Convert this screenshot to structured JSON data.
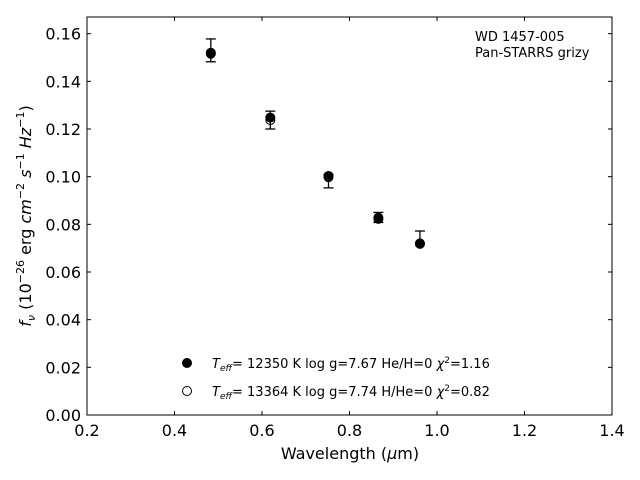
{
  "chart_data": {
    "type": "scatter",
    "annotation": [
      "WD 1457-005",
      "Pan-STARRS grizy"
    ],
    "xlabel": "Wavelength (μm)",
    "ylabel": "f_ν (10^-26 erg cm^-2 s^-1 Hz^-1)",
    "xlim": [
      0.2,
      1.4
    ],
    "ylim": [
      0.0,
      0.167
    ],
    "xticks": [
      0.2,
      0.4,
      0.6,
      0.8,
      1.0,
      1.2,
      1.4
    ],
    "xtick_labels": [
      "0.2",
      "0.4",
      "0.6",
      "0.8",
      "1.0",
      "1.2",
      "1.4"
    ],
    "yticks": [
      0.0,
      0.02,
      0.04,
      0.06,
      0.08,
      0.1,
      0.12,
      0.14,
      0.16
    ],
    "ytick_labels": [
      "0.00",
      "0.02",
      "0.04",
      "0.06",
      "0.08",
      "0.10",
      "0.12",
      "0.14",
      "0.16"
    ],
    "grid": false,
    "legend_position": "lower-center",
    "observed": {
      "x": [
        0.483,
        0.619,
        0.752,
        0.866,
        0.961
      ],
      "y": [
        0.153,
        0.124,
        0.0975,
        0.0825,
        0.074
      ],
      "yerr_low": [
        0.0048,
        0.004,
        0.0022,
        0.0017,
        0.002
      ],
      "yerr_high": [
        0.0048,
        0.0035,
        0.0035,
        0.0025,
        0.0032
      ]
    },
    "series": [
      {
        "name": "T_eff= 12350 K  log g=7.67  He/H=0  χ²=1.16",
        "marker": "filled-circle",
        "x": [
          0.483,
          0.619,
          0.752,
          0.866,
          0.961
        ],
        "y": [
          0.152,
          0.1248,
          0.1003,
          0.0828,
          0.072
        ]
      },
      {
        "name": "T_eff= 13364 K  log g=7.74  H/He=0  χ²=0.82",
        "marker": "open-circle",
        "x": [
          0.483,
          0.619,
          0.752,
          0.866,
          0.961
        ],
        "y": [
          0.1516,
          0.1238,
          0.0998,
          0.0823,
          0.0718
        ]
      }
    ],
    "colors": {
      "markers": "#000000",
      "axes": "#000000",
      "background": "#ffffff"
    }
  }
}
